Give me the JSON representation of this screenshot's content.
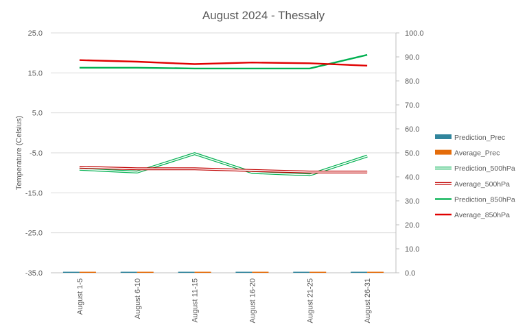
{
  "chart_data": {
    "type": "line",
    "title": "August 2024 - Thessaly",
    "ylabel": "Temperature (Celsius)",
    "y2label": "",
    "categories": [
      "August 1-5",
      "August 6-10",
      "August 11-15",
      "August 16-20",
      "August 21-25",
      "August 26-31"
    ],
    "ylim": [
      -35,
      25
    ],
    "yticks": [
      25.0,
      15.0,
      5.0,
      -5.0,
      -15.0,
      -25.0,
      -35.0
    ],
    "y2lim": [
      0,
      100
    ],
    "y2ticks": [
      100.0,
      90.0,
      80.0,
      70.0,
      60.0,
      50.0,
      40.0,
      30.0,
      20.0,
      10.0,
      0.0
    ],
    "grid": true,
    "legend_position": "right",
    "series": [
      {
        "name": "Prediction_Prec",
        "kind": "bar",
        "axis": "right",
        "color": "#31859C",
        "values": [
          0,
          0,
          0,
          0,
          0,
          0
        ]
      },
      {
        "name": "Average_Prec",
        "kind": "bar",
        "axis": "right",
        "color": "#E46C0A",
        "values": [
          0,
          0,
          0,
          0,
          0,
          0
        ]
      },
      {
        "name": "Prediction_500hPa",
        "kind": "line-double",
        "axis": "left",
        "color": "#00B050",
        "values": [
          -9.1,
          -9.8,
          -5.2,
          -9.9,
          -10.5,
          -5.8
        ]
      },
      {
        "name": "Average_500hPa",
        "kind": "line-double",
        "axis": "left",
        "color": "#C00000",
        "values": [
          -8.6,
          -9.0,
          -9.0,
          -9.4,
          -9.8,
          -9.8
        ]
      },
      {
        "name": "Prediction_850hPa",
        "kind": "line",
        "axis": "left",
        "color": "#00B050",
        "values": [
          16.3,
          16.3,
          16.1,
          16.1,
          16.1,
          19.5
        ]
      },
      {
        "name": "Average_850hPa",
        "kind": "line",
        "axis": "left",
        "color": "#E00000",
        "values": [
          18.2,
          17.8,
          17.2,
          17.6,
          17.4,
          16.8
        ]
      }
    ]
  }
}
